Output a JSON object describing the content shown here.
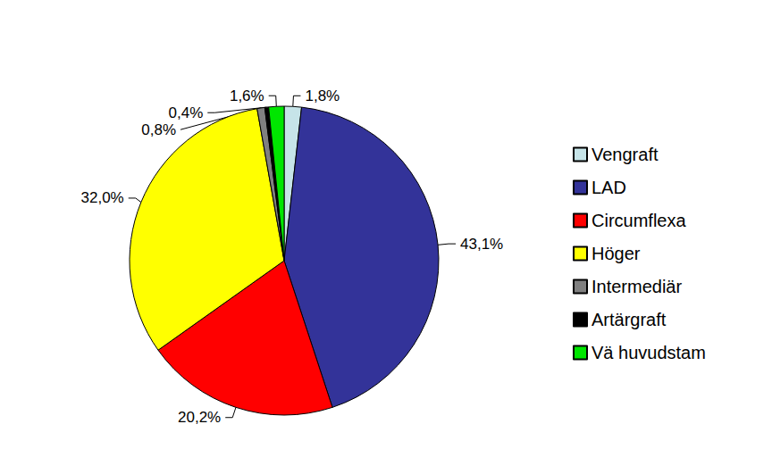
{
  "chart_data": {
    "type": "pie",
    "categories": [
      "Vengraft",
      "LAD",
      "Circumflexa",
      "Höger",
      "Intermediär",
      "Artärgraft",
      "Vä huvudstam"
    ],
    "values": [
      1.8,
      43.1,
      20.2,
      32.0,
      0.8,
      0.4,
      1.6
    ],
    "value_labels": [
      "1,8%",
      "43,1%",
      "20,2%",
      "32,0%",
      "0,8%",
      "0,4%",
      "1,6%"
    ],
    "colors": [
      "#c6e4e8",
      "#333399",
      "#ff0000",
      "#ffff00",
      "#808080",
      "#000000",
      "#00e600"
    ],
    "legend": "right",
    "data_labels": true
  }
}
